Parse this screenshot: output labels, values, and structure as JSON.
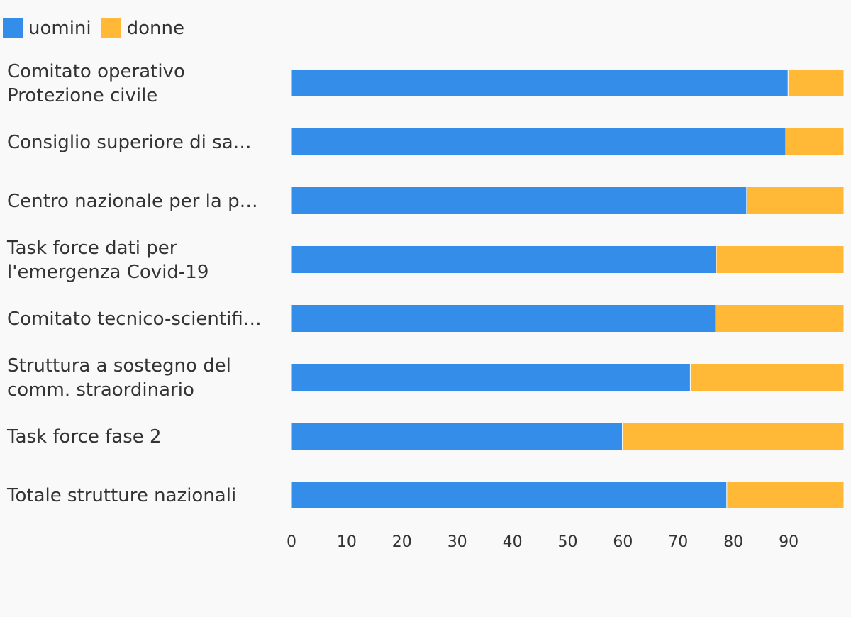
{
  "colors": {
    "uomini": "#348de9",
    "donne": "#ffb937",
    "background": "#f9f9f9",
    "text": "#333333"
  },
  "legend": [
    {
      "name": "uomini",
      "color": "#348de9"
    },
    {
      "name": "donne",
      "color": "#ffb937"
    }
  ],
  "chart_data": {
    "type": "bar",
    "orientation": "horizontal",
    "stacked": true,
    "categories": [
      [
        "Comitato operativo",
        "Protezione civile"
      ],
      [
        "Consiglio superiore di sa…"
      ],
      [
        "Centro nazionale per la p…"
      ],
      [
        "Task force dati per",
        "l'emergenza Covid-19"
      ],
      [
        "Comitato tecnico-scientifi…"
      ],
      [
        "Struttura a sostegno del",
        "comm. straordinario"
      ],
      [
        "Task force fase 2"
      ],
      [
        "Totale strutture nazionali"
      ]
    ],
    "series": [
      {
        "name": "uomini",
        "color": "#348de9",
        "values": [
          89.9,
          89.5,
          82.4,
          76.9,
          76.8,
          72.2,
          59.9,
          78.8
        ]
      },
      {
        "name": "donne",
        "color": "#ffb937",
        "values": [
          10.1,
          10.5,
          17.6,
          23.1,
          23.2,
          27.8,
          40.1,
          21.2
        ]
      }
    ],
    "xticks": [
      "0",
      "10",
      "20",
      "30",
      "40",
      "50",
      "60",
      "70",
      "80",
      "90"
    ],
    "xlim": [
      0,
      100
    ],
    "grid": false,
    "legend_position": "top-left"
  }
}
